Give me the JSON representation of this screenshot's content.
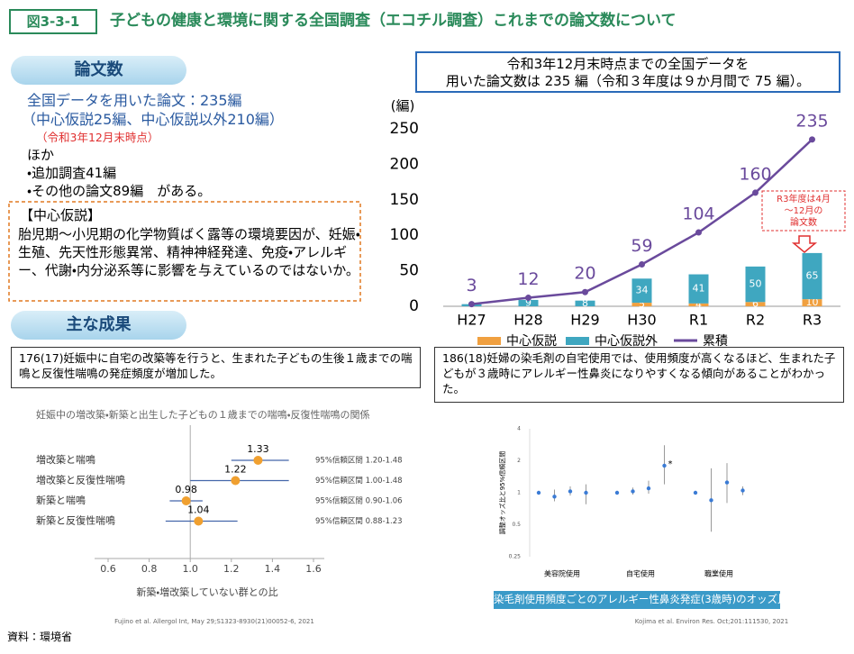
{
  "header": {
    "figure_no": "図3-3-1",
    "title": "子どもの健康と環境に関する全国調査（エコチル調査）これまでの論文数について"
  },
  "papers": {
    "heading": "論文数",
    "lines": [
      "全国データを用いた論文：235編",
      "（中心仮説25編、中心仮説以外210編）"
    ],
    "note": "（令和3年12月末時点）",
    "more": [
      "ほか",
      "・追加調査41編",
      "・その他の論文89編　がある。"
    ]
  },
  "hypothesis": {
    "title": "【中心仮説】",
    "text": "胎児期～小児期の化学物質ばく露等の環境要因が、妊娠・生殖、先天性形態異常、精神神経発達、免疫・アレルギー、代謝・内分泌系等に影響を与えているのではないか。"
  },
  "results": {
    "heading": "主な成果",
    "finding1": "176(17)妊娠中に自宅の改築等を行うと、生まれた子どもの生後１歳までの喘鳴と反復性喘鳴の発症頻度が増加した。",
    "finding2": "186(18)妊婦の染毛剤の自宅使用では、使用頻度が高くなるほど、生まれた子どもが３歳時にアレルギー性鼻炎になりやすくなる傾向があることがわかった。"
  },
  "source": "資料：環境省",
  "chart_data": [
    {
      "type": "combo",
      "callout": [
        "令和3年12月末時点までの全国データを",
        "用いた論文数は 235 編（令和３年度は９か月間で 75 編）。"
      ],
      "y_label": "(編)",
      "categories": [
        "H27",
        "H28",
        "H29",
        "H30",
        "R1",
        "R2",
        "R3"
      ],
      "series": [
        {
          "name": "中心仮説",
          "kind": "bar",
          "color": "#f0a040",
          "values": [
            0,
            0,
            0,
            5,
            4,
            6,
            10
          ]
        },
        {
          "name": "中心仮説外",
          "kind": "bar",
          "color": "#3fa7c0",
          "values": [
            3,
            9,
            8,
            34,
            41,
            50,
            65
          ]
        },
        {
          "name": "累積",
          "kind": "line",
          "color": "#6a4a9c",
          "values": [
            3,
            12,
            20,
            59,
            104,
            160,
            235
          ]
        }
      ],
      "ylim": [
        0,
        250
      ],
      "yticks": [
        0,
        50,
        100,
        150,
        200,
        250
      ],
      "annotation": [
        "R3年度は4月",
        "～12月の",
        "論文数"
      ]
    },
    {
      "type": "forest",
      "title": "妊娠中の増改築・新築と出生した子どもの１歳までの喘鳴・反復性喘鳴の関係",
      "categories": [
        "増改築と喘鳴",
        "増改築と反復性喘鳴",
        "新築と喘鳴",
        "新築と反復性喘鳴"
      ],
      "values": [
        1.33,
        1.22,
        0.98,
        1.04
      ],
      "lower": [
        1.2,
        1.0,
        0.9,
        0.88
      ],
      "upper": [
        1.48,
        1.48,
        1.06,
        1.23
      ],
      "ci_labels": [
        "95%信頼区間 1.20-1.48",
        "95%信頼区間 1.00-1.48",
        "95%信頼区間 0.90-1.06",
        "95%信頼区間 0.88-1.23"
      ],
      "color": "#f0a030",
      "xlim": [
        0.6,
        1.6
      ],
      "xticks": [
        0.6,
        0.8,
        {
          "value": 1,
          "label": "1.0"
        },
        1.2,
        1.4,
        1.6
      ],
      "reference": 1,
      "x_label": "新築・増改築していない群との比",
      "citation": "Fujino et al. Allergol Int, May 29;S1323-8930(21)00052-6, 2021"
    },
    {
      "type": "errorbar",
      "y_label": "調整オッズ比と95%信頼区間",
      "log_scale": true,
      "ylim": [
        0.25,
        4
      ],
      "yticks": [
        0.25,
        0.5,
        1,
        2,
        4
      ],
      "color": "#3a7bd5",
      "groups": [
        {
          "name": "美容院使用",
          "values": [
            1,
            0.92,
            1.03,
            1.0
          ],
          "lower": [
            null,
            0.83,
            0.94,
            0.78
          ],
          "upper": [
            null,
            1.07,
            1.15,
            1.2
          ],
          "point_labels": [
            null,
            null,
            null,
            null
          ]
        },
        {
          "name": "自宅使用",
          "values": [
            1,
            1.03,
            1.1,
            1.8
          ],
          "lower": [
            null,
            0.96,
            0.98,
            1.2
          ],
          "upper": [
            null,
            1.12,
            1.3,
            2.8
          ],
          "point_labels": [
            null,
            null,
            null,
            "*"
          ]
        },
        {
          "name": "職業使用",
          "values": [
            1,
            0.85,
            1.25,
            1.05
          ],
          "lower": [
            null,
            0.43,
            0.8,
            0.95
          ],
          "upper": [
            null,
            1.7,
            1.9,
            1.15
          ],
          "point_labels": [
            null,
            null,
            null,
            null
          ]
        }
      ],
      "caption": "染毛剤使用頻度ごとのアレルギー性鼻炎発症(3歳時)のオッズ比",
      "citation": "Kojima et al. Environ Res. Oct;201:111530, 2021"
    }
  ]
}
